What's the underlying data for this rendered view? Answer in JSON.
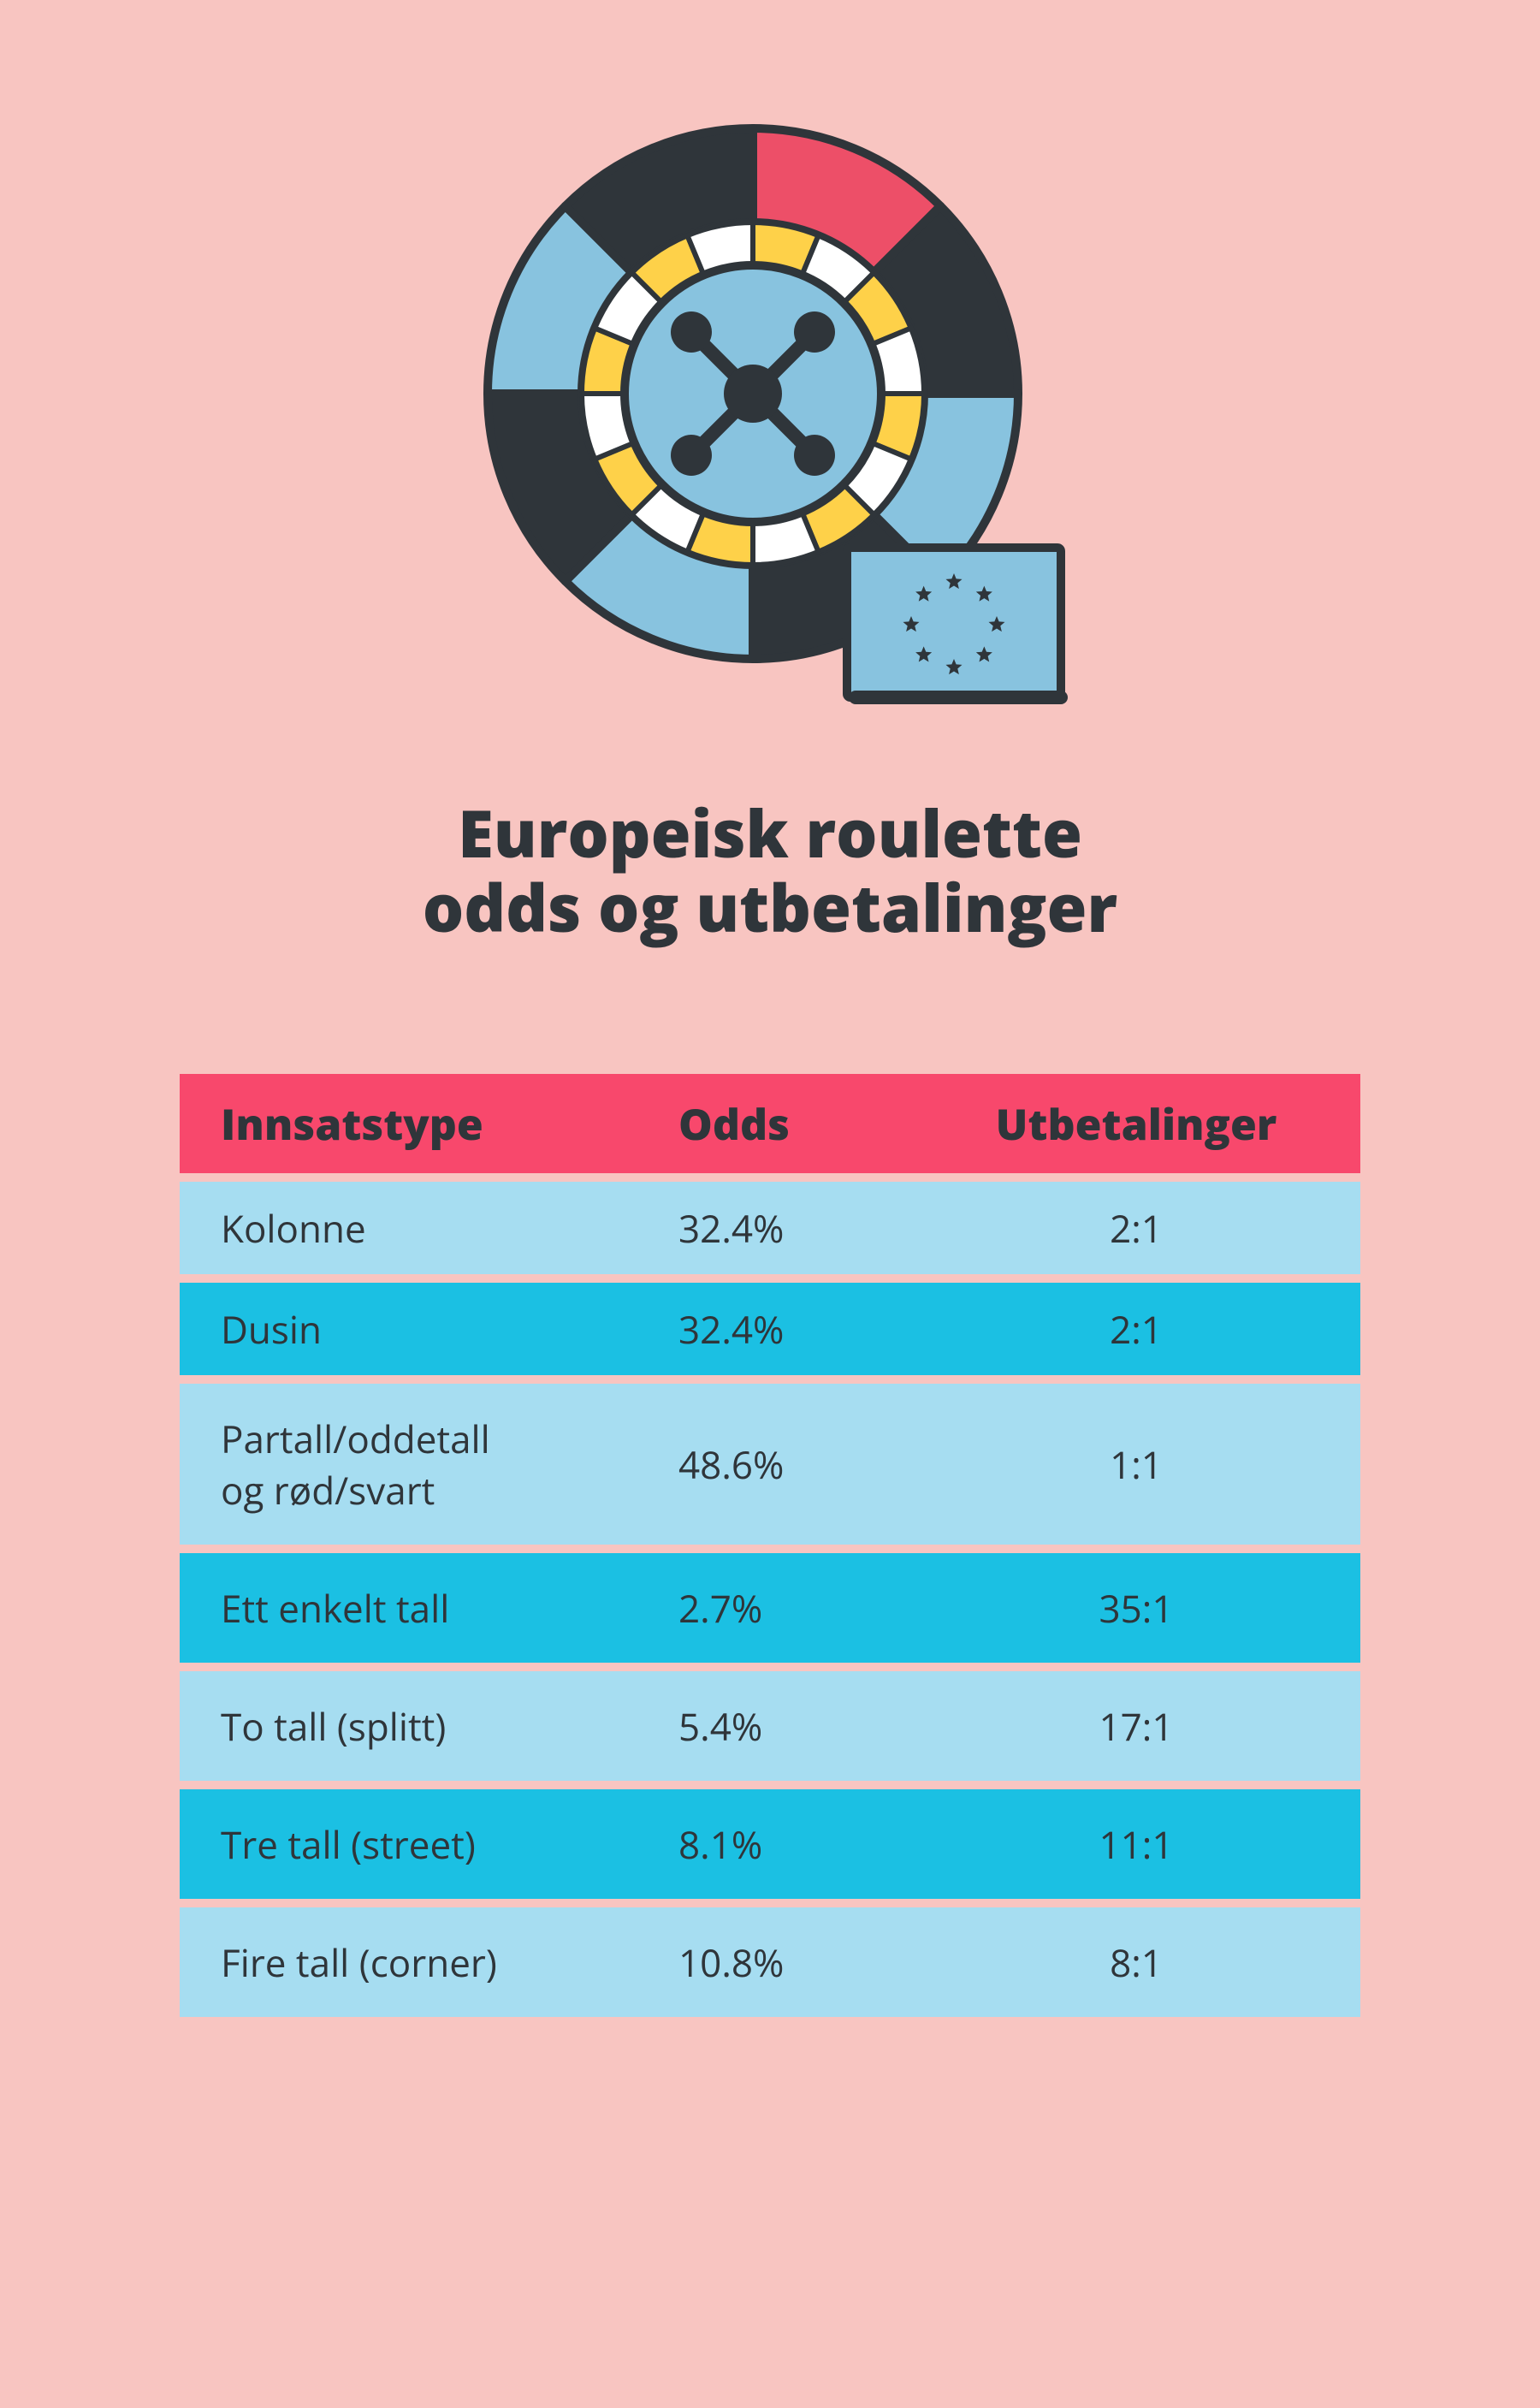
{
  "title_line1": "Europeisk roulette",
  "title_line2": "odds og utbetalinger",
  "wheel": {
    "outer_dark": "#2f353a",
    "outer_light": "#88c3df",
    "outer_pink": "#ed4f68",
    "ring_yellow": "#fed149",
    "ring_white": "#ffffff",
    "inner_blue": "#88c3df",
    "hub_dark": "#2f353a",
    "flag_bg": "#88c3df",
    "flag_star": "#2f353a",
    "stroke": "#2f353a"
  },
  "table": {
    "header_bg": "#f8486c",
    "row_light_bg": "#a6ddf1",
    "row_dark_bg": "#1bc0e3",
    "text_color": "#2f353a",
    "columns": {
      "type": "Innsatstype",
      "odds": "Odds",
      "payout": "Utbetalinger"
    },
    "rows": [
      {
        "type": "Kolonne",
        "odds": "32.4%",
        "payout": "2:1",
        "variant": "light",
        "tall": false
      },
      {
        "type": "Dusin",
        "odds": "32.4%",
        "payout": "2:1",
        "variant": "dark",
        "tall": false
      },
      {
        "type": "Partall/oddetall og rød/svart",
        "odds": "48.6%",
        "payout": "1:1",
        "variant": "light",
        "tall": true,
        "wrap": true
      },
      {
        "type": "Ett enkelt tall",
        "odds": "2.7%",
        "payout": "35:1",
        "variant": "dark",
        "tall": true
      },
      {
        "type": "To tall (splitt)",
        "odds": "5.4%",
        "payout": "17:1",
        "variant": "light",
        "tall": true
      },
      {
        "type": "Tre tall (street)",
        "odds": "8.1%",
        "payout": "11:1",
        "variant": "dark",
        "tall": true
      },
      {
        "type": "Fire tall (corner)",
        "odds": "10.8%",
        "payout": "8:1",
        "variant": "light",
        "tall": true
      }
    ]
  }
}
